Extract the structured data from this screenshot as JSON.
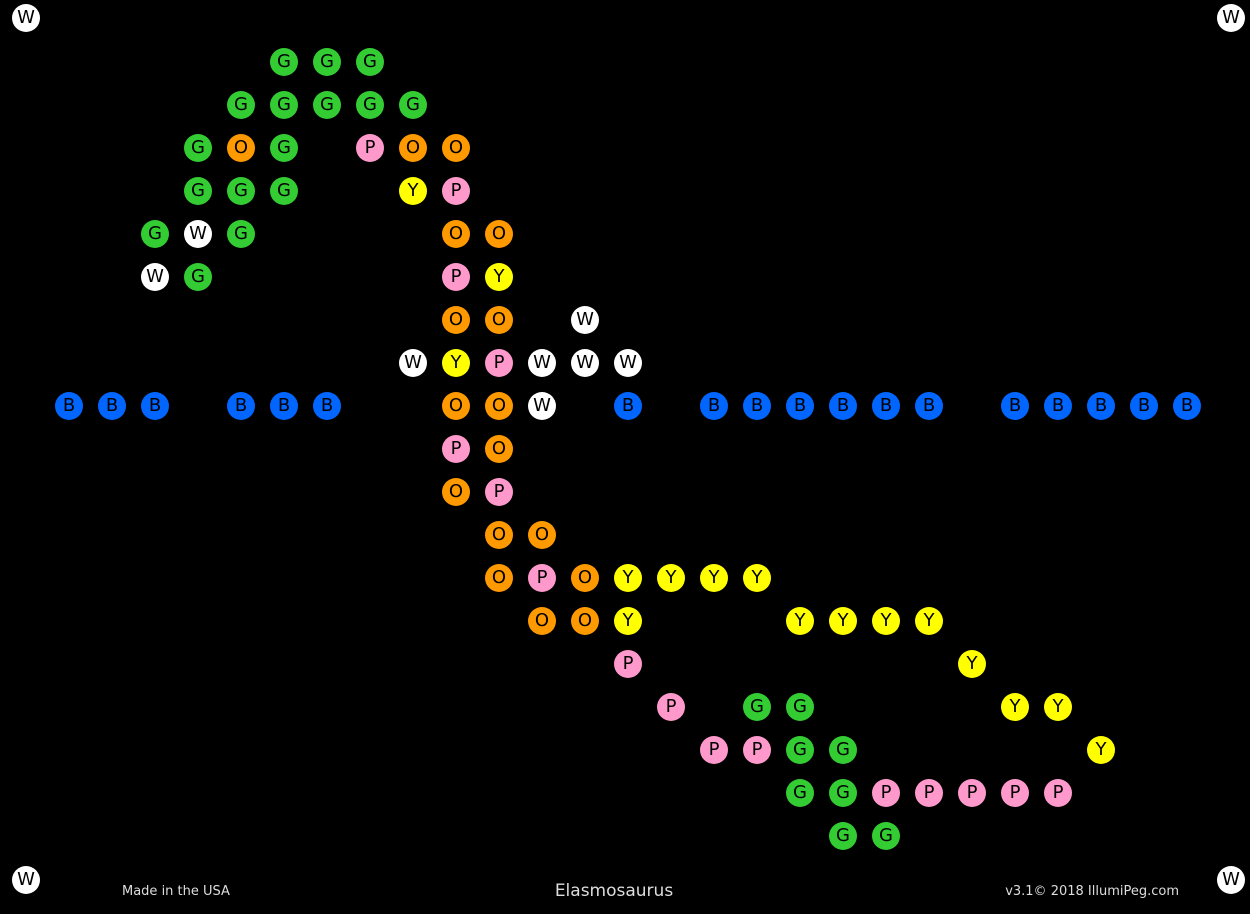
{
  "title": "Elasmosaurus",
  "footer_left": "Made in the USA",
  "footer_right": "v3.1© 2018 IllumiPeg.com",
  "colors": {
    "G": "#33cc33",
    "O": "#ff9900",
    "P": "#ff99cc",
    "Y": "#ffff00",
    "W": "#ffffff",
    "B": "#0066ff"
  },
  "corner_pegs": [
    "W",
    "W",
    "W",
    "W"
  ],
  "rows": [
    ".....GGG",
    "....GGGGG",
    "...GOG.POO",
    "...GGG..YP",
    "..GWG....OO",
    "..WG.....PY",
    ".........OO.W",
    "........WYPWWW",
    "BBB.BBB..OOW.B.BBBBBB.BBBBB",
    ".........PO",
    ".........OP",
    "..........OO",
    "..........OPOYYYY",
    "...........OOY...YYYY",
    ".............P.......Y",
    "..............P.GG....YY",
    "...............PPGG.....Y",
    ".................GGPPPPP",
    "..................GG"
  ]
}
